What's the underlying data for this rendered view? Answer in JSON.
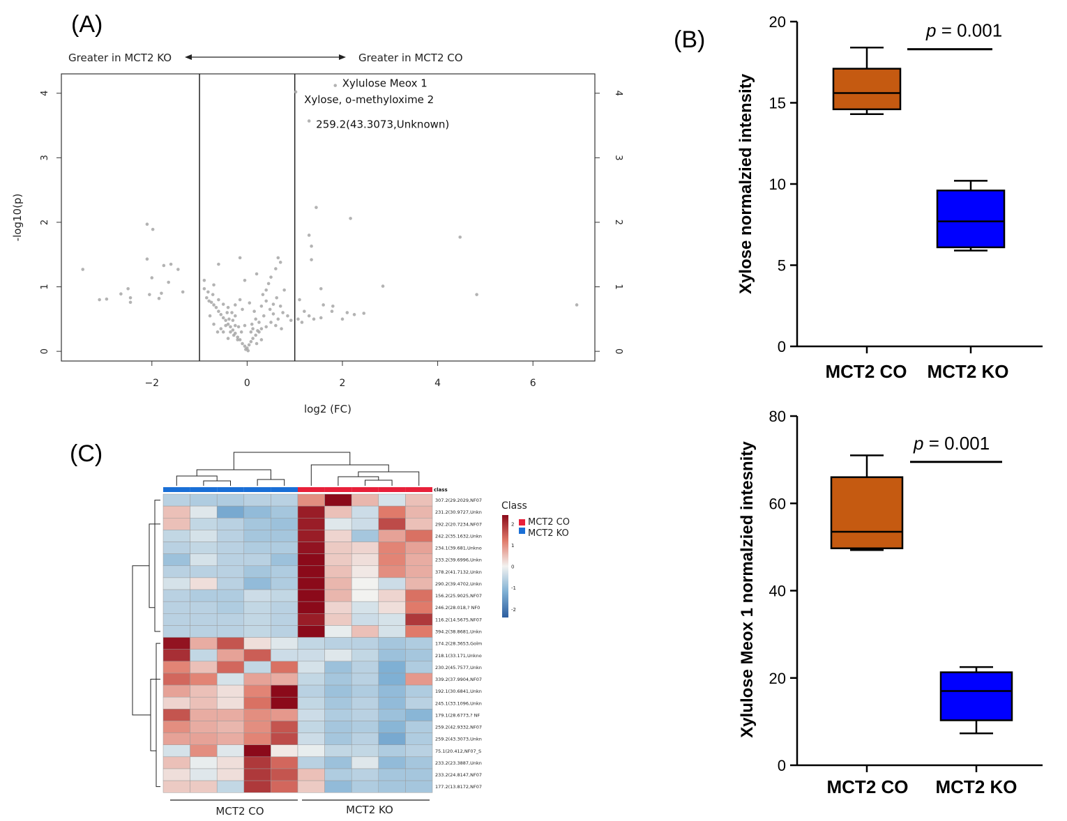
{
  "colors": {
    "co_box": "#c55a11",
    "ko_box": "#0000ff",
    "co_class": "#e8203a",
    "ko_class": "#1a6fd6",
    "point": "#a6a6a6",
    "heat_low": "#2c5d9f",
    "heat_mid": "#f2f2f0",
    "heat_high": "#8b0a1a"
  },
  "chart_data": [
    {
      "id": "A",
      "type": "scatter",
      "panel_label": "(A)",
      "xlabel": "log2 (FC)",
      "ylabel": "-log10(p)",
      "xlim": [
        -3.9,
        7.3
      ],
      "ylim": [
        -0.15,
        4.3
      ],
      "xticks": [
        -2,
        0,
        2,
        4,
        6
      ],
      "yticks": [
        0,
        1,
        2,
        3,
        4
      ],
      "threshold_lines_x": [
        -1,
        1
      ],
      "direction_left": "Greater in MCT2 KO",
      "direction_right": "Greater in MCT2 CO",
      "labels": [
        {
          "text": "Xylulose Meox 1",
          "x": 1.85,
          "y": 4.12
        },
        {
          "text": "Xylose, o-methyloxime 2",
          "x": 1.05,
          "y": 4.02
        },
        {
          "text": "259.2(43.3073,Unknown)",
          "x": 1.3,
          "y": 3.57
        }
      ],
      "points": [
        [
          1.85,
          4.12
        ],
        [
          1.02,
          4.02
        ],
        [
          1.3,
          3.57
        ],
        [
          1.45,
          2.23
        ],
        [
          2.17,
          2.06
        ],
        [
          4.47,
          1.77
        ],
        [
          4.82,
          0.88
        ],
        [
          6.92,
          0.72
        ],
        [
          2.85,
          1.01
        ],
        [
          1.3,
          1.8
        ],
        [
          1.35,
          1.63
        ],
        [
          1.35,
          1.42
        ],
        [
          1.55,
          0.97
        ],
        [
          1.1,
          0.8
        ],
        [
          1.6,
          0.72
        ],
        [
          1.8,
          0.7
        ],
        [
          1.78,
          0.62
        ],
        [
          2.1,
          0.6
        ],
        [
          2.25,
          0.57
        ],
        [
          2.45,
          0.59
        ],
        [
          1.2,
          0.62
        ],
        [
          1.3,
          0.55
        ],
        [
          1.4,
          0.5
        ],
        [
          1.55,
          0.52
        ],
        [
          1.07,
          0.5
        ],
        [
          1.15,
          0.45
        ],
        [
          2.0,
          0.5
        ],
        [
          -2.1,
          1.97
        ],
        [
          -1.98,
          1.89
        ],
        [
          -2.1,
          1.43
        ],
        [
          -1.75,
          1.33
        ],
        [
          -1.6,
          1.35
        ],
        [
          -1.45,
          1.27
        ],
        [
          -1.35,
          0.92
        ],
        [
          -1.8,
          0.9
        ],
        [
          -1.85,
          0.82
        ],
        [
          -2.05,
          0.88
        ],
        [
          -2.0,
          1.14
        ],
        [
          -1.65,
          1.07
        ],
        [
          -2.5,
          0.97
        ],
        [
          -2.65,
          0.89
        ],
        [
          -2.45,
          0.83
        ],
        [
          -2.45,
          0.76
        ],
        [
          -2.95,
          0.81
        ],
        [
          -3.1,
          0.8
        ],
        [
          -3.45,
          1.27
        ],
        [
          -0.15,
          1.45
        ],
        [
          -0.05,
          1.1
        ],
        [
          0.2,
          1.2
        ],
        [
          -0.6,
          1.35
        ],
        [
          -0.9,
          1.1
        ],
        [
          -0.7,
          1.03
        ],
        [
          0.65,
          1.45
        ],
        [
          0.7,
          1.38
        ],
        [
          0.6,
          1.28
        ],
        [
          0.5,
          1.15
        ],
        [
          0.45,
          1.05
        ],
        [
          0.4,
          0.95
        ],
        [
          0.33,
          0.88
        ],
        [
          0.78,
          0.95
        ],
        [
          0.62,
          0.83
        ],
        [
          0.55,
          0.73
        ],
        [
          0.48,
          0.65
        ],
        [
          0.7,
          0.7
        ],
        [
          0.75,
          0.6
        ],
        [
          0.85,
          0.55
        ],
        [
          0.92,
          0.48
        ],
        [
          0.65,
          0.5
        ],
        [
          0.5,
          0.45
        ],
        [
          0.4,
          0.38
        ],
        [
          0.3,
          0.35
        ],
        [
          0.25,
          0.3
        ],
        [
          0.18,
          0.25
        ],
        [
          0.12,
          0.2
        ],
        [
          0.08,
          0.15
        ],
        [
          0.04,
          0.1
        ],
        [
          0.0,
          0.05
        ],
        [
          -0.03,
          0.03
        ],
        [
          0.02,
          0.01
        ],
        [
          -0.05,
          0.08
        ],
        [
          -0.1,
          0.12
        ],
        [
          -0.15,
          0.18
        ],
        [
          -0.2,
          0.22
        ],
        [
          -0.25,
          0.28
        ],
        [
          -0.3,
          0.33
        ],
        [
          -0.35,
          0.38
        ],
        [
          -0.4,
          0.42
        ],
        [
          -0.45,
          0.48
        ],
        [
          -0.5,
          0.52
        ],
        [
          -0.55,
          0.57
        ],
        [
          -0.6,
          0.62
        ],
        [
          -0.65,
          0.68
        ],
        [
          -0.7,
          0.72
        ],
        [
          -0.75,
          0.76
        ],
        [
          -0.8,
          0.78
        ],
        [
          -0.85,
          0.83
        ],
        [
          -0.82,
          0.92
        ],
        [
          -0.9,
          0.97
        ],
        [
          -0.72,
          0.88
        ],
        [
          -0.6,
          0.8
        ],
        [
          -0.5,
          0.73
        ],
        [
          -0.4,
          0.68
        ],
        [
          -0.32,
          0.6
        ],
        [
          -0.25,
          0.55
        ],
        [
          -0.3,
          0.48
        ],
        [
          -0.38,
          0.5
        ],
        [
          -0.45,
          0.4
        ],
        [
          -0.35,
          0.3
        ],
        [
          -0.28,
          0.25
        ],
        [
          -0.2,
          0.18
        ],
        [
          -0.12,
          0.3
        ],
        [
          -0.18,
          0.38
        ],
        [
          -0.05,
          0.4
        ],
        [
          0.1,
          0.42
        ],
        [
          0.18,
          0.5
        ],
        [
          0.25,
          0.45
        ],
        [
          0.35,
          0.55
        ],
        [
          0.3,
          0.7
        ],
        [
          0.15,
          0.62
        ],
        [
          -0.1,
          0.65
        ],
        [
          -0.55,
          0.35
        ],
        [
          -0.62,
          0.3
        ],
        [
          -0.7,
          0.42
        ],
        [
          -0.78,
          0.55
        ],
        [
          -0.25,
          0.72
        ],
        [
          -0.15,
          0.8
        ],
        [
          0.05,
          0.75
        ],
        [
          0.4,
          0.78
        ],
        [
          0.55,
          0.58
        ],
        [
          0.6,
          0.4
        ],
        [
          0.72,
          0.35
        ],
        [
          0.2,
          0.12
        ],
        [
          0.3,
          0.18
        ],
        [
          0.12,
          0.35
        ],
        [
          -0.4,
          0.2
        ],
        [
          -0.5,
          0.3
        ],
        [
          0.08,
          0.3
        ],
        [
          -0.25,
          0.4
        ],
        [
          -0.42,
          0.6
        ],
        [
          0.22,
          0.32
        ]
      ]
    },
    {
      "id": "B1",
      "type": "box",
      "panel_label": "(B)",
      "ylabel": "Xylose normalzied intensity",
      "ylim": [
        0,
        20
      ],
      "yticks": [
        0,
        5,
        10,
        15,
        20
      ],
      "categories": [
        "MCT2 CO",
        "MCT2 KO"
      ],
      "boxes": [
        {
          "name": "MCT2 CO",
          "min": 14.3,
          "q1": 14.6,
          "median": 15.6,
          "q3": 17.1,
          "max": 18.4
        },
        {
          "name": "MCT2 KO",
          "min": 5.9,
          "q1": 6.1,
          "median": 7.7,
          "q3": 9.6,
          "max": 10.2
        }
      ],
      "annotation": {
        "p_label": "p",
        "p_value": " = 0.001",
        "y": 18.3
      }
    },
    {
      "id": "B2",
      "type": "box",
      "ylabel": "Xylulose Meox 1 normalzied intesnity",
      "ylim": [
        0,
        80
      ],
      "yticks": [
        0,
        20,
        40,
        60,
        80
      ],
      "categories": [
        "MCT2 CO",
        "MCT2 KO"
      ],
      "boxes": [
        {
          "name": "MCT2 CO",
          "min": 49.3,
          "q1": 49.7,
          "median": 53.5,
          "q3": 66.0,
          "max": 71.0
        },
        {
          "name": "MCT2 KO",
          "min": 7.3,
          "q1": 10.3,
          "median": 17.0,
          "q3": 21.3,
          "max": 22.5
        }
      ],
      "annotation": {
        "p_label": "p",
        "p_value": " = 0.001",
        "y": 69.5
      }
    },
    {
      "id": "C",
      "type": "heatmap",
      "panel_label": "(C)",
      "columns_class": [
        "MCT2 KO",
        "MCT2 KO",
        "MCT2 KO",
        "MCT2 KO",
        "MCT2 KO",
        "MCT2 CO",
        "MCT2 CO",
        "MCT2 CO",
        "MCT2 CO",
        "MCT2 CO"
      ],
      "class_header": "class",
      "group_labels": [
        "MCT2 CO",
        "MCT2 KO"
      ],
      "legend_title": "Class",
      "legend_entries": [
        "MCT2 CO",
        "MCT2 KO"
      ],
      "scale_ticks": [
        2,
        1,
        0,
        -1,
        -2
      ],
      "scale_range": [
        -2.4,
        2.4
      ],
      "rows": [
        {
          "label": "307.2(29.2029,NF07",
          "values": [
            -0.6,
            -0.7,
            -0.7,
            -0.6,
            -0.6,
            1.0,
            2.6,
            0.6,
            -0.3,
            0.5
          ]
        },
        {
          "label": "231.2(30.9727,Unkn",
          "values": [
            0.5,
            -0.2,
            -1.3,
            -1.0,
            -0.8,
            2.2,
            0.5,
            -0.4,
            1.2,
            0.6
          ]
        },
        {
          "label": "292.2(20.7234,NF07",
          "values": [
            0.5,
            -0.5,
            -0.6,
            -0.8,
            -0.9,
            2.2,
            -0.2,
            -0.4,
            1.7,
            0.5
          ]
        },
        {
          "label": "242.2(35.1632,Unkn",
          "values": [
            -0.5,
            -0.3,
            -0.6,
            -0.8,
            -0.8,
            2.2,
            0.3,
            -0.8,
            0.8,
            1.3
          ]
        },
        {
          "label": "234.1(39.681,Unkno",
          "values": [
            -0.6,
            -0.5,
            -0.6,
            -0.7,
            -0.7,
            2.3,
            0.4,
            0.3,
            1.1,
            0.8
          ]
        },
        {
          "label": "233.2(39.6996,Unkn",
          "values": [
            -0.9,
            -0.3,
            -0.6,
            -0.6,
            -0.9,
            2.4,
            0.4,
            0.2,
            1.1,
            0.7
          ]
        },
        {
          "label": "378.2(41.7132,Unkn",
          "values": [
            -0.6,
            -0.6,
            -0.6,
            -0.8,
            -0.7,
            2.5,
            0.5,
            0.1,
            1.0,
            0.7
          ]
        },
        {
          "label": "290.2(39.4702,Unkn",
          "values": [
            -0.3,
            0.2,
            -0.6,
            -1.0,
            -0.7,
            2.5,
            0.6,
            0.0,
            -0.4,
            0.6
          ]
        },
        {
          "label": "156.2(25.9025,NF07",
          "values": [
            -0.6,
            -0.7,
            -0.7,
            -0.4,
            -0.5,
            2.5,
            0.6,
            0.0,
            0.3,
            1.3
          ]
        },
        {
          "label": "246.2(28.018,? NF0",
          "values": [
            -0.6,
            -0.6,
            -0.7,
            -0.5,
            -0.6,
            2.4,
            0.3,
            -0.3,
            0.2,
            1.2
          ]
        },
        {
          "label": "116.2(14.5675,NF07",
          "values": [
            -0.6,
            -0.6,
            -0.6,
            -0.5,
            -0.6,
            2.2,
            0.4,
            -0.4,
            -0.3,
            1.9
          ]
        },
        {
          "label": "394.2(38.8681,Unkn",
          "values": [
            -0.6,
            -0.6,
            -0.6,
            -0.5,
            -0.6,
            2.5,
            -0.1,
            0.5,
            -0.3,
            1.2
          ]
        },
        {
          "label": "174.2(28.3653,Golm",
          "values": [
            2.3,
            0.7,
            1.6,
            0.2,
            -0.2,
            -0.5,
            -0.6,
            -0.6,
            -0.8,
            -0.7
          ]
        },
        {
          "label": "218.1(33.171,Unkno",
          "values": [
            2.0,
            -0.5,
            0.8,
            1.5,
            -0.4,
            -0.4,
            -0.2,
            -0.5,
            -0.9,
            -0.8
          ]
        },
        {
          "label": "230.2(45.7577,Unkn",
          "values": [
            1.1,
            0.5,
            1.4,
            -0.5,
            1.3,
            -0.3,
            -0.9,
            -0.6,
            -1.2,
            -0.7
          ]
        },
        {
          "label": "339.2(37.9904,NF07",
          "values": [
            1.4,
            1.1,
            -0.3,
            0.8,
            0.7,
            -0.5,
            -0.8,
            -0.6,
            -1.2,
            0.9
          ]
        },
        {
          "label": "192.1(30.6841,Unkn",
          "values": [
            0.8,
            0.5,
            0.2,
            1.1,
            2.5,
            -0.6,
            -0.9,
            -0.7,
            -1.0,
            -0.7
          ]
        },
        {
          "label": "245.1(33.1096,Unkn",
          "values": [
            0.3,
            0.5,
            0.2,
            1.3,
            2.5,
            -0.5,
            -0.8,
            -0.6,
            -1.0,
            -0.6
          ]
        },
        {
          "label": "179.1(28.6773,? NF",
          "values": [
            1.6,
            0.7,
            0.7,
            1.0,
            0.9,
            -0.4,
            -0.7,
            -0.6,
            -0.9,
            -1.1
          ]
        },
        {
          "label": "259.2(42.9332,NF07",
          "values": [
            1.0,
            0.7,
            0.6,
            1.0,
            1.6,
            -0.5,
            -0.8,
            -0.7,
            -1.1,
            -0.7
          ]
        },
        {
          "label": "259.2(43.3073,Unkn",
          "values": [
            0.8,
            0.8,
            0.7,
            1.1,
            1.7,
            -0.4,
            -0.8,
            -0.6,
            -1.3,
            -0.7
          ]
        },
        {
          "label": "75.1(20.412,NF07_S",
          "values": [
            -0.3,
            1.0,
            -0.2,
            2.6,
            0.1,
            -0.1,
            -0.5,
            -0.5,
            -0.7,
            -0.6
          ]
        },
        {
          "label": "233.2(23.3887,Unkn",
          "values": [
            0.5,
            -0.1,
            0.2,
            1.9,
            1.4,
            -0.6,
            -0.9,
            -0.2,
            -1.0,
            -0.8
          ]
        },
        {
          "label": "233.2(24.8147,NF07",
          "values": [
            0.2,
            -0.2,
            0.2,
            1.9,
            1.6,
            0.5,
            -0.7,
            -0.6,
            -0.8,
            -0.8
          ]
        },
        {
          "label": "177.2(13.8172,NF07",
          "values": [
            0.4,
            0.4,
            -0.5,
            1.9,
            1.4,
            0.4,
            -1.0,
            -0.7,
            -0.8,
            -0.8
          ]
        }
      ]
    }
  ]
}
